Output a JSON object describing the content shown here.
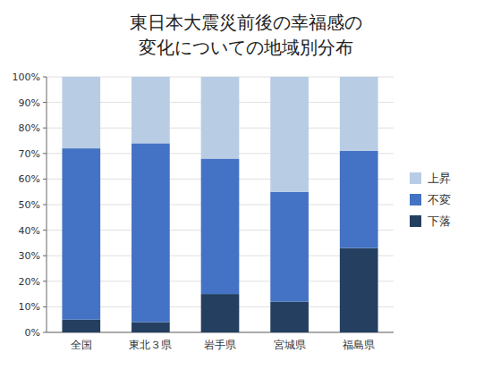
{
  "chart_data": {
    "type": "bar",
    "stacked": true,
    "title": "東日本大震災前後の幸福感の",
    "subtitle": "変化についての地域別分布",
    "categories": [
      "全国",
      "東北３県",
      "岩手県",
      "宮城県",
      "福島県"
    ],
    "series": [
      {
        "name": "下落",
        "color": "#243F60",
        "values": [
          5,
          4,
          15,
          12,
          33
        ]
      },
      {
        "name": "不変",
        "color": "#4472C4",
        "values": [
          67,
          70,
          53,
          43,
          38
        ]
      },
      {
        "name": "上昇",
        "color": "#B8CCE4",
        "values": [
          28,
          26,
          32,
          45,
          29
        ]
      }
    ],
    "ylim": [
      0,
      100
    ],
    "yticks": [
      {
        "value": 0,
        "label": "0%"
      },
      {
        "value": 10,
        "label": "10%"
      },
      {
        "value": 20,
        "label": "20%"
      },
      {
        "value": 30,
        "label": "30%"
      },
      {
        "value": 40,
        "label": "40%"
      },
      {
        "value": 50,
        "label": "50%"
      },
      {
        "value": 60,
        "label": "60%"
      },
      {
        "value": 70,
        "label": "70%"
      },
      {
        "value": 80,
        "label": "80%"
      },
      {
        "value": 90,
        "label": "90%"
      },
      {
        "value": 100,
        "label": "100%"
      }
    ],
    "grid": true,
    "legend": "right"
  }
}
